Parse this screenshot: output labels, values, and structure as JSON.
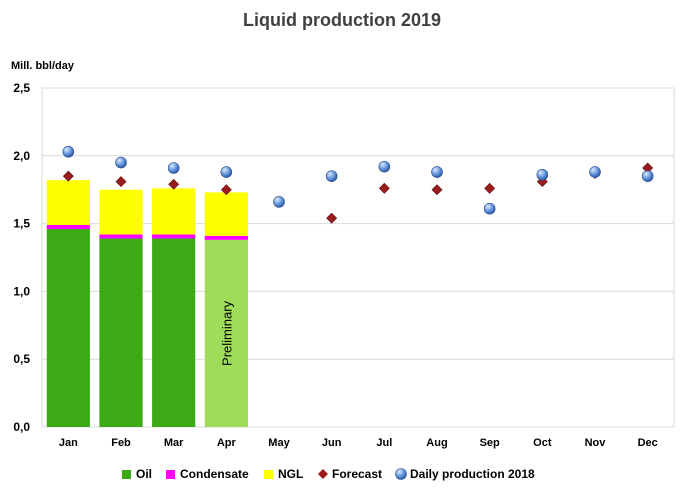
{
  "chart_data": {
    "type": "bar",
    "title": "Liquid production 2019",
    "ylabel": "Mill. bbl/day",
    "xlabel": "",
    "ylim": [
      0,
      2.5
    ],
    "yticks": [
      "0,0",
      "0,5",
      "1,0",
      "1,5",
      "2,0",
      "2,5"
    ],
    "categories": [
      "Jan",
      "Feb",
      "Mar",
      "Apr",
      "May",
      "Jun",
      "Jul",
      "Aug",
      "Sep",
      "Oct",
      "Nov",
      "Dec"
    ],
    "stacked": true,
    "grid": true,
    "legend_position": "bottom",
    "series": [
      {
        "name": "Oil",
        "type": "bar",
        "color": "#3caa14",
        "values": [
          1.46,
          1.39,
          1.39,
          1.38,
          null,
          null,
          null,
          null,
          null,
          null,
          null,
          null
        ]
      },
      {
        "name": "Condensate",
        "type": "bar",
        "color": "#ff00ff",
        "values": [
          0.03,
          0.03,
          0.03,
          0.03,
          null,
          null,
          null,
          null,
          null,
          null,
          null,
          null
        ]
      },
      {
        "name": "NGL",
        "type": "bar",
        "color": "#ffff00",
        "values": [
          0.33,
          0.33,
          0.34,
          0.32,
          null,
          null,
          null,
          null,
          null,
          null,
          null,
          null
        ]
      },
      {
        "name": "Forecast",
        "type": "scatter",
        "marker": "diamond",
        "color": "#9b1c1c",
        "values": [
          1.85,
          1.81,
          1.79,
          1.75,
          1.66,
          1.54,
          1.76,
          1.75,
          1.76,
          1.81,
          1.87,
          1.91
        ]
      },
      {
        "name": "Daily production 2018",
        "type": "scatter",
        "marker": "circle",
        "color": "#5b8fd6",
        "values": [
          2.03,
          1.95,
          1.91,
          1.88,
          1.66,
          1.85,
          1.92,
          1.88,
          1.61,
          1.86,
          1.88,
          1.85
        ]
      }
    ],
    "preliminary_index": 3,
    "preliminary_colors": {
      "Oil": "#9edc5a",
      "NGL": "#ffff00",
      "Condensate": "#ff00ff"
    },
    "annotation": "Preliminary"
  }
}
